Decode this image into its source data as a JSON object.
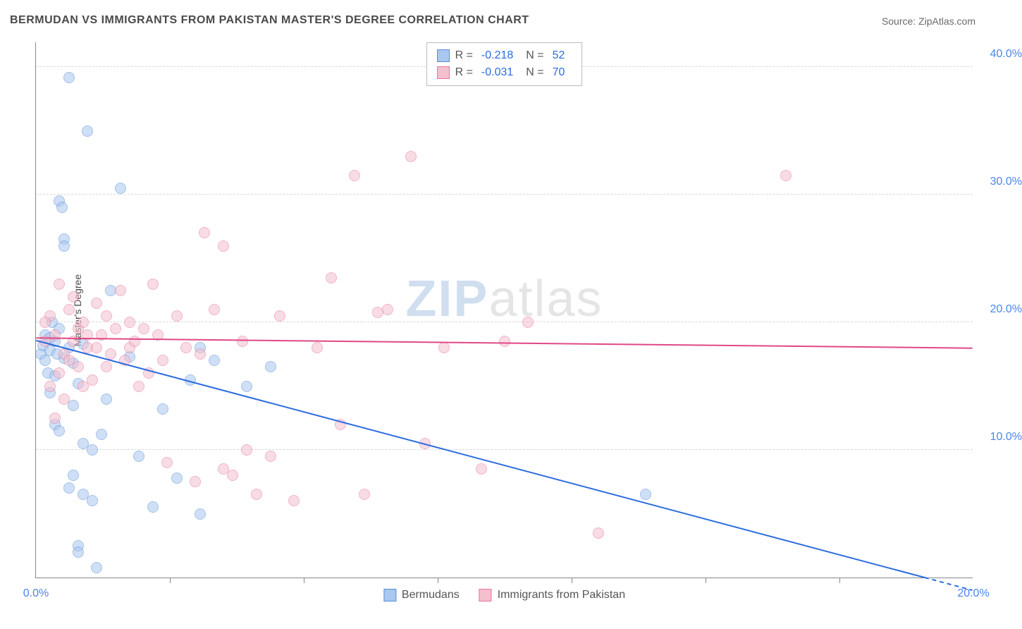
{
  "title": "BERMUDAN VS IMMIGRANTS FROM PAKISTAN MASTER'S DEGREE CORRELATION CHART",
  "source_label": "Source: ZipAtlas.com",
  "ylabel": "Master's Degree",
  "watermark": {
    "prefix": "ZIP",
    "suffix": "atlas"
  },
  "chart": {
    "type": "scatter",
    "xlim": [
      0,
      20
    ],
    "ylim": [
      0,
      42
    ],
    "x_ticks": [
      0,
      20
    ],
    "x_tick_labels": [
      "0.0%",
      "20.0%"
    ],
    "x_minor_ticks": [
      2.86,
      5.71,
      8.57,
      11.43,
      14.29,
      17.14
    ],
    "y_ticks": [
      10,
      20,
      30,
      40
    ],
    "y_tick_labels": [
      "10.0%",
      "20.0%",
      "30.0%",
      "40.0%"
    ],
    "background_color": "#ffffff",
    "grid_color": "#d8d8d8",
    "axis_color": "#888888",
    "marker_radius": 8,
    "marker_opacity": 0.55,
    "series": [
      {
        "name": "Bermudans",
        "color_fill": "#a9c7ef",
        "color_stroke": "#5a8fd6",
        "trend_color": "#2b6be0",
        "R": "-0.218",
        "N": "52",
        "trend": {
          "x1": 0,
          "y1": 18.6,
          "x2": 20,
          "y2": -1.0
        },
        "points": [
          [
            0.1,
            17.5
          ],
          [
            0.15,
            18.2
          ],
          [
            0.2,
            17.0
          ],
          [
            0.2,
            19.0
          ],
          [
            0.25,
            16.0
          ],
          [
            0.3,
            17.8
          ],
          [
            0.3,
            14.5
          ],
          [
            0.35,
            20.0
          ],
          [
            0.4,
            18.5
          ],
          [
            0.4,
            12.0
          ],
          [
            0.5,
            11.5
          ],
          [
            0.5,
            29.5
          ],
          [
            0.55,
            29.0
          ],
          [
            0.6,
            26.5
          ],
          [
            0.6,
            26.0
          ],
          [
            0.7,
            39.2
          ],
          [
            0.7,
            7.0
          ],
          [
            0.8,
            8.0
          ],
          [
            0.8,
            13.5
          ],
          [
            0.9,
            2.5
          ],
          [
            0.9,
            2.0
          ],
          [
            1.0,
            6.5
          ],
          [
            1.0,
            10.5
          ],
          [
            1.1,
            35.0
          ],
          [
            1.2,
            6.0
          ],
          [
            1.2,
            10.0
          ],
          [
            1.3,
            0.8
          ],
          [
            1.4,
            11.2
          ],
          [
            1.5,
            14.0
          ],
          [
            1.6,
            22.5
          ],
          [
            1.8,
            30.5
          ],
          [
            2.0,
            17.3
          ],
          [
            2.2,
            9.5
          ],
          [
            2.5,
            5.5
          ],
          [
            2.7,
            13.2
          ],
          [
            3.0,
            7.8
          ],
          [
            3.3,
            15.5
          ],
          [
            3.5,
            18.0
          ],
          [
            3.5,
            5.0
          ],
          [
            3.8,
            17.0
          ],
          [
            4.5,
            15.0
          ],
          [
            5.0,
            16.5
          ],
          [
            0.3,
            18.8
          ],
          [
            0.4,
            15.8
          ],
          [
            0.5,
            19.5
          ],
          [
            0.6,
            17.2
          ],
          [
            0.7,
            18.0
          ],
          [
            0.8,
            16.8
          ],
          [
            0.9,
            15.2
          ],
          [
            1.0,
            18.3
          ],
          [
            13.0,
            6.5
          ],
          [
            0.45,
            17.5
          ]
        ]
      },
      {
        "name": "Immigrants from Pakistan",
        "color_fill": "#f4c0ce",
        "color_stroke": "#e776a0",
        "trend_color": "#e04887",
        "R": "-0.031",
        "N": "70",
        "trend": {
          "x1": 0,
          "y1": 18.8,
          "x2": 20,
          "y2": 18.0
        },
        "points": [
          [
            0.2,
            18.5
          ],
          [
            0.3,
            20.5
          ],
          [
            0.4,
            19.0
          ],
          [
            0.5,
            23.0
          ],
          [
            0.6,
            17.5
          ],
          [
            0.7,
            21.0
          ],
          [
            0.8,
            22.0
          ],
          [
            0.9,
            19.5
          ],
          [
            1.0,
            20.0
          ],
          [
            1.1,
            18.0
          ],
          [
            1.2,
            15.5
          ],
          [
            1.3,
            21.5
          ],
          [
            1.4,
            19.0
          ],
          [
            1.5,
            20.5
          ],
          [
            1.6,
            17.5
          ],
          [
            1.8,
            22.5
          ],
          [
            2.0,
            20.0
          ],
          [
            2.0,
            18.0
          ],
          [
            2.2,
            15.0
          ],
          [
            2.3,
            19.5
          ],
          [
            2.5,
            23.0
          ],
          [
            2.7,
            17.0
          ],
          [
            2.8,
            9.0
          ],
          [
            3.0,
            20.5
          ],
          [
            3.2,
            18.0
          ],
          [
            3.4,
            7.5
          ],
          [
            3.5,
            17.5
          ],
          [
            3.6,
            27.0
          ],
          [
            3.8,
            21.0
          ],
          [
            4.0,
            8.5
          ],
          [
            4.0,
            26.0
          ],
          [
            4.2,
            8.0
          ],
          [
            4.4,
            18.5
          ],
          [
            4.5,
            10.0
          ],
          [
            4.7,
            6.5
          ],
          [
            5.0,
            9.5
          ],
          [
            5.2,
            20.5
          ],
          [
            5.5,
            6.0
          ],
          [
            6.0,
            18.0
          ],
          [
            6.3,
            23.5
          ],
          [
            6.5,
            12.0
          ],
          [
            6.8,
            31.5
          ],
          [
            7.0,
            6.5
          ],
          [
            7.3,
            20.8
          ],
          [
            7.5,
            21.0
          ],
          [
            8.0,
            33.0
          ],
          [
            8.3,
            10.5
          ],
          [
            8.7,
            18.0
          ],
          [
            9.5,
            8.5
          ],
          [
            10.0,
            18.5
          ],
          [
            10.5,
            20.0
          ],
          [
            12.0,
            3.5
          ],
          [
            16.0,
            31.5
          ],
          [
            0.3,
            15.0
          ],
          [
            0.4,
            12.5
          ],
          [
            0.5,
            16.0
          ],
          [
            0.6,
            14.0
          ],
          [
            0.7,
            17.0
          ],
          [
            0.8,
            18.5
          ],
          [
            0.9,
            16.5
          ],
          [
            1.0,
            15.0
          ],
          [
            1.1,
            19.0
          ],
          [
            1.3,
            18.0
          ],
          [
            1.5,
            16.5
          ],
          [
            1.7,
            19.5
          ],
          [
            1.9,
            17.0
          ],
          [
            2.1,
            18.5
          ],
          [
            2.4,
            16.0
          ],
          [
            2.6,
            19.0
          ],
          [
            0.2,
            20.0
          ]
        ]
      }
    ]
  },
  "bottom_legend": [
    "Bermudans",
    "Immigrants from Pakistan"
  ]
}
